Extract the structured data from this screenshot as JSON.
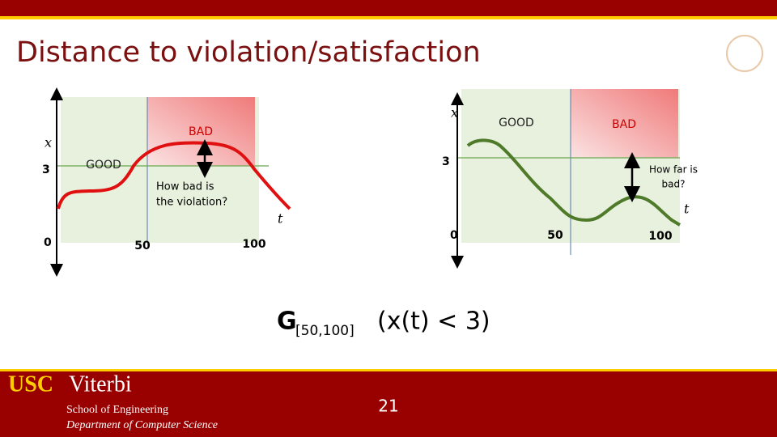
{
  "header": {
    "title": "Distance to violation/satisfaction"
  },
  "left_plot": {
    "y_label": "x",
    "x_label": "t",
    "y_tick_high": "3",
    "y_tick_low": "0",
    "x_tick_mid": "50",
    "x_tick_end": "100",
    "bad_label": "BAD",
    "good_label": "GOOD",
    "note_lines": [
      "How bad is",
      "the violation?"
    ]
  },
  "right_plot": {
    "y_label": "x",
    "x_label": "t",
    "y_tick_high": "3",
    "y_tick_low": "0",
    "x_tick_mid": "50",
    "x_tick_end": "100",
    "bad_label": "BAD",
    "good_label": "GOOD",
    "note_lines": [
      "How far is",
      "bad?"
    ]
  },
  "formula": {
    "operator": "G",
    "interval": "[50,100]",
    "body": "(x(t) < 3)"
  },
  "footer": {
    "brand_usc": "USC",
    "brand_viterbi": "Viterbi",
    "school": "School of Engineering",
    "department": "Department of Computer Science",
    "page_number": "21"
  }
}
